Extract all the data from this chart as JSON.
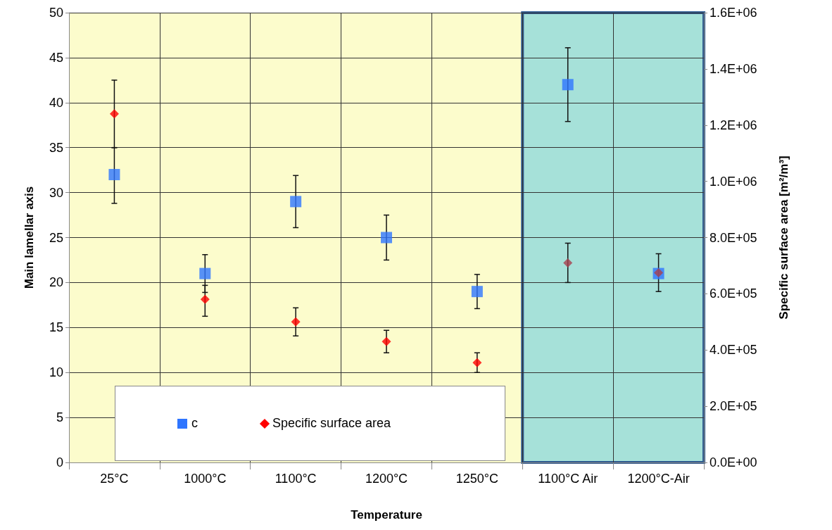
{
  "chart_data": {
    "type": "scatter",
    "xlabel": "Temperature",
    "ylabel": "Main lamellar axis",
    "y2label": "Specific surface area [m²/m³]",
    "categories": [
      "25°C",
      "1000°C",
      "1100°C",
      "1200°C",
      "1250°C",
      "1100°C Air",
      "1200°C-Air"
    ],
    "series": [
      {
        "name": "c",
        "color": "#2e75ff",
        "marker": "square",
        "values": [
          32,
          21,
          29,
          25,
          19,
          42,
          21
        ],
        "errors": [
          [
            28.8,
            35.0
          ],
          [
            18.9,
            23.1
          ],
          [
            26.1,
            31.9
          ],
          [
            22.5,
            27.5
          ],
          [
            17.1,
            20.9
          ],
          [
            37.9,
            46.1
          ],
          [
            19.0,
            23.2
          ]
        ]
      },
      {
        "name": "Specific surface area",
        "color": "#ff0000",
        "colors": [
          "#ff0000",
          "#ff0000",
          "#ff0000",
          "#ff0000",
          "#ff0000",
          "#a8404e",
          "#a8404e"
        ],
        "marker": "diamond",
        "axis": "y2",
        "values": [
          1240000,
          580000,
          500000,
          430000,
          355000,
          710000,
          675000
        ],
        "errors": [
          [
            1120000,
            1360000
          ],
          [
            520000,
            630000
          ],
          [
            450000,
            550000
          ],
          [
            390000,
            470000
          ],
          [
            320000,
            390000
          ],
          [
            640000,
            780000
          ],
          null
        ]
      }
    ],
    "ylim": [
      0,
      50
    ],
    "yticks": [
      0,
      5,
      10,
      15,
      20,
      25,
      30,
      35,
      40,
      45,
      50
    ],
    "y2lim": [
      0,
      1600000
    ],
    "y2ticks": [
      {
        "value": 0,
        "label": "0.0E+00"
      },
      {
        "value": 200000,
        "label": "2.0E+05"
      },
      {
        "value": 400000,
        "label": "4.0E+05"
      },
      {
        "value": 600000,
        "label": "6.0E+05"
      },
      {
        "value": 800000,
        "label": "8.0E+05"
      },
      {
        "value": 1000000,
        "label": "1.0E+06"
      },
      {
        "value": 1200000,
        "label": "1.2E+06"
      },
      {
        "value": 1400000,
        "label": "1.4E+06"
      },
      {
        "value": 1600000,
        "label": "1.6E+06"
      }
    ],
    "bands": [
      {
        "axis": "x",
        "from": "1100°C Air",
        "to": "1200°C-Air",
        "color": "#a6e1d9"
      }
    ],
    "grid": true,
    "legend": "bottom"
  }
}
